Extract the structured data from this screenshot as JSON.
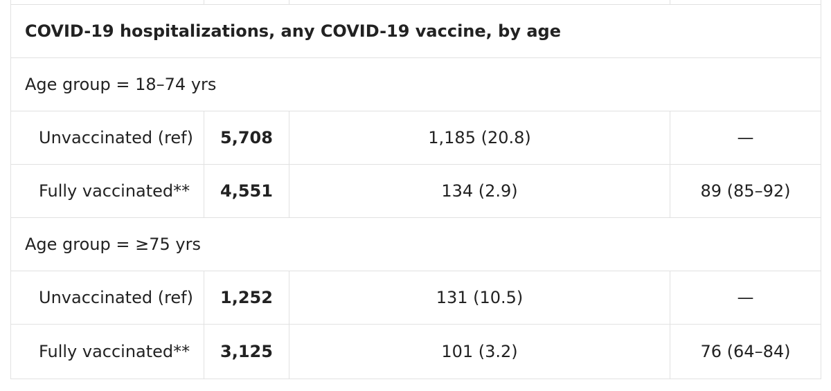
{
  "title": "COVID-19 hospitalizations, any COVID-19 vaccine, by age",
  "groups": [
    {
      "label": "Age group = 18–74 yrs",
      "rows": [
        {
          "status": "Unvaccinated (ref)",
          "n": "5,708",
          "hospitalizations": "1,185 (20.8)",
          "ve": "—"
        },
        {
          "status": "Fully vaccinated**",
          "n": "4,551",
          "hospitalizations": "134 (2.9)",
          "ve": "89 (85–92)"
        }
      ]
    },
    {
      "label": "Age group = ≥75 yrs",
      "rows": [
        {
          "status": "Unvaccinated (ref)",
          "n": "1,252",
          "hospitalizations": "131 (10.5)",
          "ve": "—"
        },
        {
          "status": "Fully vaccinated**",
          "n": "3,125",
          "hospitalizations": "101 (3.2)",
          "ve": "76 (64–84)"
        }
      ]
    }
  ]
}
